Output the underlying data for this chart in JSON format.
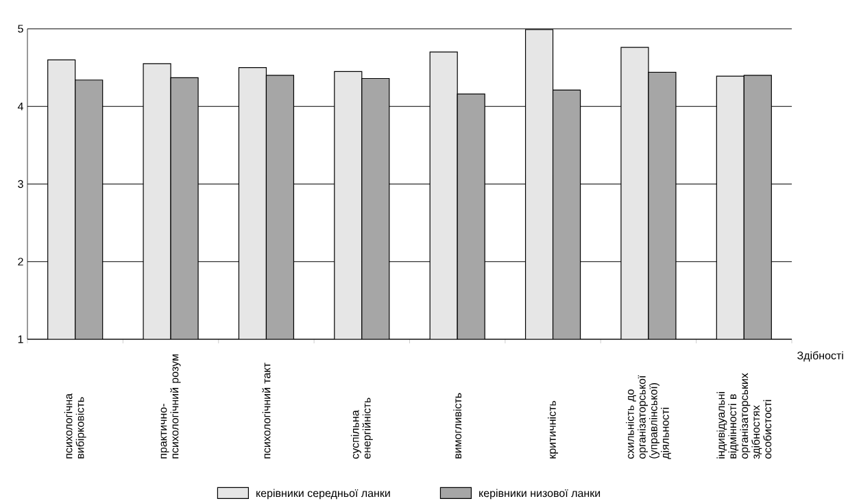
{
  "chart_data": {
    "type": "bar",
    "xlabel": "Здібності",
    "categories": [
      "психологічна вибірковість",
      "практично-психологічний розум",
      "психологічний такт",
      "суспільна енергійність",
      "вимогливість",
      "критичність",
      "схильність до організаторської (управлінської) діяльності",
      "індивідуальні відмінності в організаторських здібностях особистості"
    ],
    "series": [
      {
        "name": "керівники середньої ланки",
        "color": "#e6e6e6",
        "values": [
          4.6,
          4.55,
          4.5,
          4.45,
          4.7,
          4.99,
          4.76,
          4.39
        ]
      },
      {
        "name": "керівники низової ланки",
        "color": "#a6a6a6",
        "values": [
          4.34,
          4.37,
          4.4,
          4.36,
          4.16,
          4.21,
          4.44,
          4.4
        ]
      }
    ],
    "ylim": [
      1,
      5
    ],
    "yticks": [
      1,
      2,
      3,
      4,
      5
    ],
    "grid": "y",
    "legend": "bottom"
  }
}
